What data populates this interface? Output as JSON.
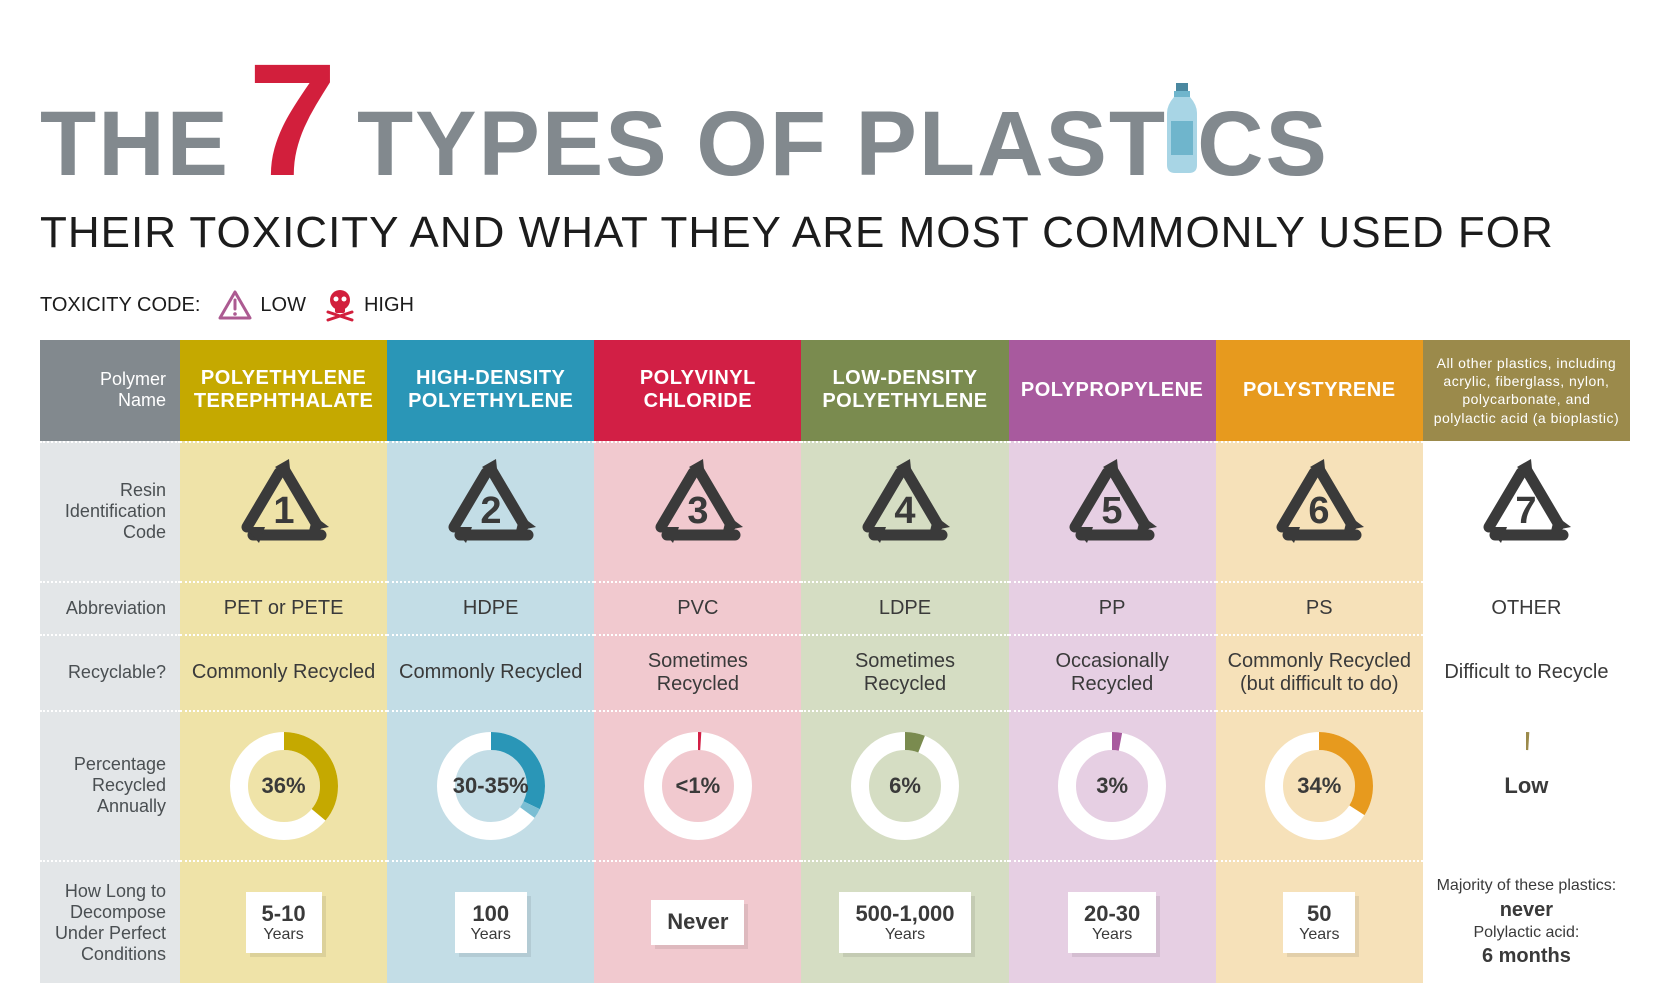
{
  "title": {
    "word1": "THE",
    "big_number": "7",
    "word2_a": "TYPES OF PLAST",
    "word2_b": "CS"
  },
  "subtitle": "THEIR TOXICITY AND WHAT THEY ARE MOST COMMONLY USED FOR",
  "legend": {
    "label": "TOXICITY CODE:",
    "low": "LOW",
    "high": "HIGH",
    "low_color": "#ac5a91",
    "high_color": "#d21f3c"
  },
  "row_labels": {
    "polymer": "Polymer Name",
    "ric": "Resin Identification Code",
    "abbr": "Abbreviation",
    "recyclable": "Recyclable?",
    "percent": "Percentage Recycled Annually",
    "decompose": "How Long to Decompose Under Perfect Conditions"
  },
  "colors": {
    "label_bg": "#e3e6e8",
    "label_header_bg": "#82898e",
    "ric_icon": "#3a3a3a"
  },
  "plastics": [
    {
      "name": "POLYETHYLENE TEREPHTHALATE",
      "header_bg": "#c5a900",
      "body_bg": "#efe3a8",
      "ric": "1",
      "abbr": "PET or PETE",
      "recyclable": "Commonly Recycled",
      "pct_label": "36%",
      "pct_value": 36,
      "donut_color": "#c5a900",
      "decomp_big": "5-10",
      "decomp_unit": "Years"
    },
    {
      "name": "HIGH-DENSITY POLYETHYLENE",
      "header_bg": "#2a96b7",
      "body_bg": "#c3dde6",
      "ric": "2",
      "abbr": "HDPE",
      "recyclable": "Commonly Recycled",
      "pct_label": "30-35%",
      "pct_value": 32,
      "pct_extra": 3,
      "donut_color": "#2a96b7",
      "donut_color2": "#7bbed3",
      "decomp_big": "100",
      "decomp_unit": "Years"
    },
    {
      "name": "POLYVINYL CHLORIDE",
      "header_bg": "#d21f45",
      "body_bg": "#f1c9cf",
      "ric": "3",
      "abbr": "PVC",
      "recyclable": "Sometimes Recycled",
      "pct_label": "<1%",
      "pct_value": 1,
      "donut_color": "#d21f45",
      "decomp_big": "Never",
      "decomp_unit": ""
    },
    {
      "name": "LOW-DENSITY POLYETHYLENE",
      "header_bg": "#7a8b4f",
      "body_bg": "#d5ddc3",
      "ric": "4",
      "abbr": "LDPE",
      "recyclable": "Sometimes Recycled",
      "pct_label": "6%",
      "pct_value": 6,
      "donut_color": "#7a8b4f",
      "decomp_big": "500-1,000",
      "decomp_unit": "Years"
    },
    {
      "name": "POLYPROPYLENE",
      "header_bg": "#a85a9e",
      "body_bg": "#e6cfe3",
      "ric": "5",
      "abbr": "PP",
      "recyclable": "Occasionally Recycled",
      "pct_label": "3%",
      "pct_value": 3,
      "donut_color": "#a85a9e",
      "decomp_big": "20-30",
      "decomp_unit": "Years"
    },
    {
      "name": "POLYSTYRENE",
      "header_bg": "#e79a1e",
      "body_bg": "#f6e1b9",
      "ric": "6",
      "abbr": "PS",
      "recyclable": "Commonly Recycled (but difficult to do)",
      "pct_label": "34%",
      "pct_value": 34,
      "donut_color": "#e79a1e",
      "decomp_big": "50",
      "decomp_unit": "Years"
    },
    {
      "name": "All other plastics, including acrylic, fiberglass, nylon, polycarbonate, and polylactic acid (a bioplastic)",
      "header_bg": "#9b8a4b",
      "body_bg": "#ffffff",
      "ric": "7",
      "abbr": "OTHER",
      "recyclable": "Difficult to Recycle",
      "pct_label": "Low",
      "pct_value": 1,
      "donut_color": "#9b8a4b",
      "decomp_text1": "Majority of these plastics:",
      "decomp_big1": "never",
      "decomp_text2": "Polylactic acid:",
      "decomp_big2": "6 months",
      "is_other": true
    }
  ]
}
